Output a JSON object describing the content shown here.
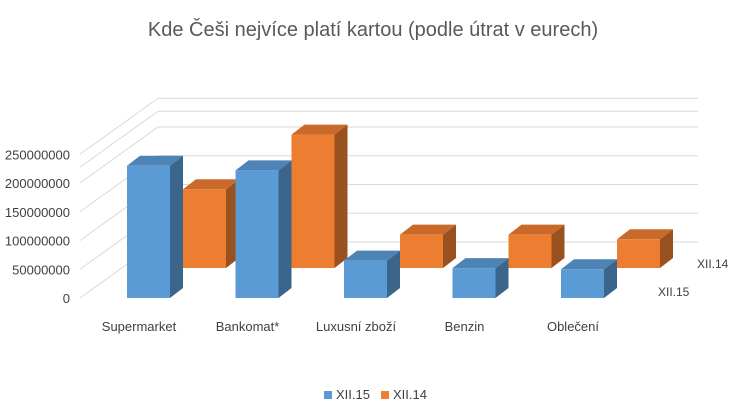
{
  "chart_data": {
    "type": "bar",
    "title": "Kde Češi nejvíce platí kartou (podle útrat v eurech)",
    "categories": [
      "Supermarket",
      "Bankomat*",
      "Luxusní zboží",
      "Benzin",
      "Oblečení"
    ],
    "series": [
      {
        "name": "XII.15",
        "values": [
          230000000,
          222000000,
          65000000,
          52000000,
          50000000
        ],
        "color": "#5b9bd5"
      },
      {
        "name": "XII.14",
        "values": [
          137000000,
          232000000,
          58000000,
          58000000,
          50000000
        ],
        "color": "#ed7d31"
      }
    ],
    "ylim": [
      0,
      250000000
    ],
    "yticks": [
      "0",
      "50000000",
      "100000000",
      "150000000",
      "200000000",
      "250000000"
    ],
    "series_axis_labels": [
      "XII.14",
      "XII.15"
    ],
    "legend": [
      "XII.15",
      "XII.14"
    ],
    "legend_position": "bottom",
    "style": "3d-column",
    "grid": true
  }
}
